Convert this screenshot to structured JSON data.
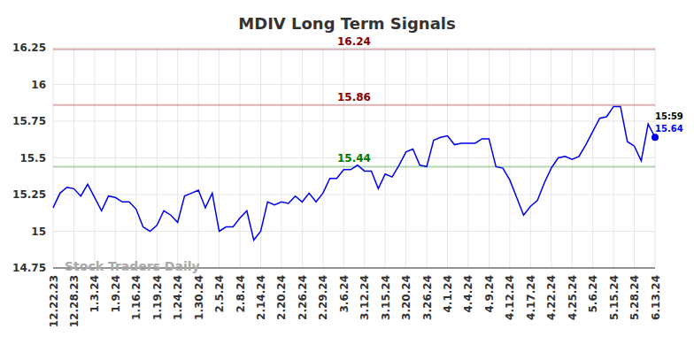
{
  "chart_data": {
    "type": "line",
    "title": "MDIV Long Term Signals",
    "annotations": [
      "Stock Traders Daily",
      "15:59"
    ],
    "categories": [
      "12.22.23",
      null,
      null,
      "12.28.23",
      null,
      null,
      "1.3.24",
      null,
      null,
      "1.9.24",
      null,
      null,
      "1.16.24",
      null,
      null,
      "1.19.24",
      null,
      null,
      "1.24.24",
      null,
      null,
      "1.30.24",
      null,
      null,
      "2.5.24",
      null,
      null,
      "2.8.24",
      null,
      null,
      "2.14.24",
      null,
      null,
      "2.20.24",
      null,
      null,
      "2.26.24",
      null,
      null,
      "2.29.24",
      null,
      null,
      "3.6.24",
      null,
      null,
      "3.12.24",
      null,
      null,
      "3.15.24",
      null,
      null,
      "3.20.24",
      null,
      null,
      "3.26.24",
      null,
      null,
      "4.1.24",
      null,
      null,
      "4.4.24",
      null,
      null,
      "4.9.24",
      null,
      null,
      "4.12.24",
      null,
      null,
      "4.17.24",
      null,
      null,
      "4.22.24",
      null,
      null,
      "4.25.24",
      null,
      null,
      "5.6.24",
      null,
      null,
      "5.15.24",
      null,
      null,
      "5.28.24",
      null,
      null,
      "6.13.24"
    ],
    "values": [
      15.16,
      15.26,
      15.3,
      15.29,
      15.24,
      15.32,
      15.23,
      15.14,
      15.24,
      15.23,
      15.2,
      15.2,
      15.15,
      15.03,
      15.0,
      15.04,
      15.14,
      15.11,
      15.06,
      15.24,
      15.26,
      15.28,
      15.16,
      15.26,
      15.0,
      15.03,
      15.03,
      15.09,
      15.14,
      14.94,
      15.0,
      15.2,
      15.18,
      15.2,
      15.19,
      15.24,
      15.2,
      15.26,
      15.2,
      15.26,
      15.36,
      15.36,
      15.42,
      15.42,
      15.45,
      15.41,
      15.41,
      15.29,
      15.39,
      15.37,
      15.45,
      15.54,
      15.56,
      15.45,
      15.44,
      15.62,
      15.64,
      15.65,
      15.59,
      15.6,
      15.6,
      15.6,
      15.63,
      15.63,
      15.44,
      15.43,
      15.35,
      15.23,
      15.11,
      15.17,
      15.21,
      15.33,
      15.43,
      15.5,
      15.51,
      15.49,
      15.51,
      15.59,
      15.68,
      15.77,
      15.78,
      15.85,
      15.85,
      15.61,
      15.58,
      15.48,
      15.73,
      15.64
    ],
    "color": "#0000ee",
    "ylim": [
      14.75,
      16.25
    ],
    "yticks": [
      14.75,
      15,
      15.25,
      15.5,
      15.75,
      16,
      16.25
    ],
    "grid": true,
    "reference_lines": [
      {
        "value": 16.24,
        "color": "#8b0000"
      },
      {
        "value": 15.86,
        "color": "#8b0000"
      },
      {
        "value": 15.44,
        "color": "#007a00"
      }
    ]
  }
}
